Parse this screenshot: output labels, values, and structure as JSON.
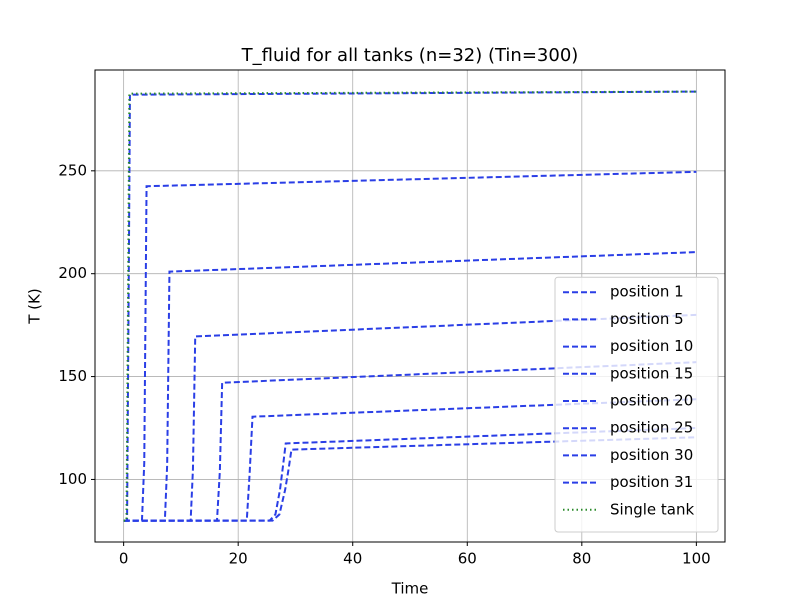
{
  "chart_data": {
    "type": "line",
    "title": "T_fluid for all tanks (n=32) (Tin=300)",
    "xlabel": "Time",
    "ylabel": "T (K)",
    "xlim": [
      -5,
      105
    ],
    "ylim": [
      69.6,
      299
    ],
    "xticks": [
      0,
      20,
      40,
      60,
      80,
      100
    ],
    "yticks": [
      100,
      150,
      200,
      250
    ],
    "grid": true,
    "legend": "lower right",
    "series": [
      {
        "name": "position 1",
        "color": "#2a3ee6",
        "linestyle": "dashed",
        "x": [
          0,
          0.6,
          0.9,
          1.1,
          100
        ],
        "values": [
          80,
          80,
          200,
          287,
          288.5
        ]
      },
      {
        "name": "position 5",
        "color": "#2a3ee6",
        "linestyle": "dashed",
        "x": [
          0,
          3.2,
          3.6,
          4,
          100
        ],
        "values": [
          80,
          80,
          108,
          242.5,
          249.5
        ]
      },
      {
        "name": "position 10",
        "color": "#2a3ee6",
        "linestyle": "dashed",
        "x": [
          0,
          7.2,
          7.6,
          8,
          100
        ],
        "values": [
          80,
          80,
          107,
          201,
          210.5
        ]
      },
      {
        "name": "position 15",
        "color": "#2a3ee6",
        "linestyle": "dashed",
        "x": [
          0,
          11.7,
          12.1,
          12.5,
          100
        ],
        "values": [
          80,
          80,
          105,
          169.5,
          180
        ]
      },
      {
        "name": "position 20",
        "color": "#2a3ee6",
        "linestyle": "dashed",
        "x": [
          0,
          16.3,
          16.8,
          17.2,
          100
        ],
        "values": [
          80,
          80,
          104,
          147,
          157
        ]
      },
      {
        "name": "position 25",
        "color": "#2a3ee6",
        "linestyle": "dashed",
        "x": [
          0,
          21.5,
          22,
          22.5,
          100
        ],
        "values": [
          80,
          80,
          103,
          130.5,
          139
        ]
      },
      {
        "name": "position 30",
        "color": "#2a3ee6",
        "linestyle": "dashed",
        "x": [
          0,
          25.5,
          26.5,
          27.3,
          27.8,
          28.3,
          100
        ],
        "values": [
          80,
          80,
          83,
          95,
          106,
          117.5,
          125
        ]
      },
      {
        "name": "position 31",
        "color": "#2a3ee6",
        "linestyle": "dashed",
        "x": [
          0,
          26,
          27.2,
          28.2,
          28.8,
          29.3,
          100
        ],
        "values": [
          80,
          80,
          83,
          95,
          105,
          114.5,
          120.5
        ]
      },
      {
        "name": "Single tank",
        "color": "#2a8a2a",
        "linestyle": "dotted",
        "x": [
          0,
          0.5,
          0.8,
          1.0,
          100
        ],
        "values": [
          80,
          80,
          200,
          287.5,
          288.5
        ]
      }
    ]
  }
}
